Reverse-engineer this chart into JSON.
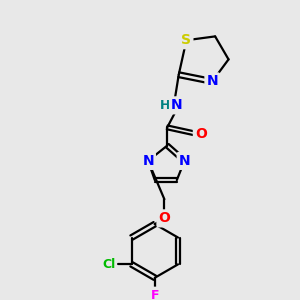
{
  "background_color": "#e8e8e8",
  "bond_color": "#000000",
  "atom_colors": {
    "S": "#cccc00",
    "N": "#0000ff",
    "O": "#ff0000",
    "Cl": "#00bb00",
    "F": "#ff00ff",
    "H": "#008080",
    "C": "#000000"
  },
  "figsize": [
    3.0,
    3.0
  ],
  "dpi": 100,
  "lw": 1.6,
  "fontsize": 9
}
